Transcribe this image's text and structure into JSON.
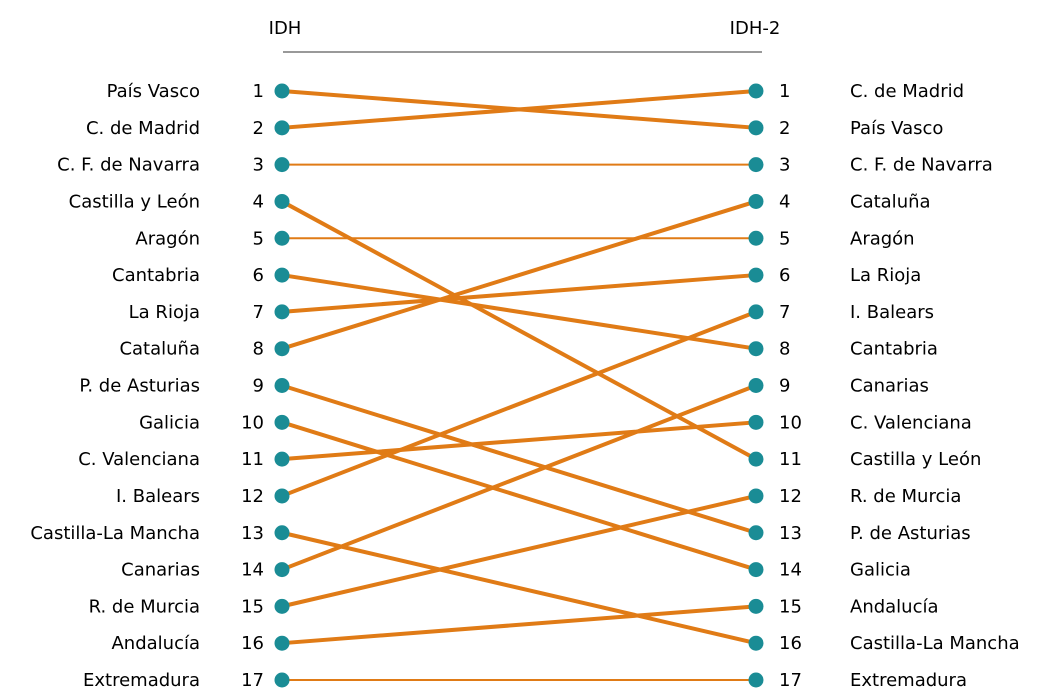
{
  "chart_data": {
    "type": "slope",
    "left_header": "IDH",
    "right_header": "IDH-2",
    "colors": {
      "line": "#E07B16",
      "marker": "#1A8C95",
      "header_rule": "#333333"
    },
    "regions": [
      {
        "name": "País Vasco",
        "left_rank": 1,
        "right_rank": 2
      },
      {
        "name": "C. de Madrid",
        "left_rank": 2,
        "right_rank": 1
      },
      {
        "name": "C. F. de Navarra",
        "left_rank": 3,
        "right_rank": 3
      },
      {
        "name": "Castilla y León",
        "left_rank": 4,
        "right_rank": 11
      },
      {
        "name": "Aragón",
        "left_rank": 5,
        "right_rank": 5
      },
      {
        "name": "Cantabria",
        "left_rank": 6,
        "right_rank": 8
      },
      {
        "name": "La Rioja",
        "left_rank": 7,
        "right_rank": 6
      },
      {
        "name": "Cataluña",
        "left_rank": 8,
        "right_rank": 4
      },
      {
        "name": "P. de Asturias",
        "left_rank": 9,
        "right_rank": 13
      },
      {
        "name": "Galicia",
        "left_rank": 10,
        "right_rank": 14
      },
      {
        "name": "C. Valenciana",
        "left_rank": 11,
        "right_rank": 10
      },
      {
        "name": "I. Balears",
        "left_rank": 12,
        "right_rank": 7
      },
      {
        "name": "Castilla-La Mancha",
        "left_rank": 13,
        "right_rank": 16
      },
      {
        "name": "Canarias",
        "left_rank": 14,
        "right_rank": 9
      },
      {
        "name": "R. de Murcia",
        "left_rank": 15,
        "right_rank": 12
      },
      {
        "name": "Andalucía",
        "left_rank": 16,
        "right_rank": 15
      },
      {
        "name": "Extremadura",
        "left_rank": 17,
        "right_rank": 17
      }
    ]
  }
}
